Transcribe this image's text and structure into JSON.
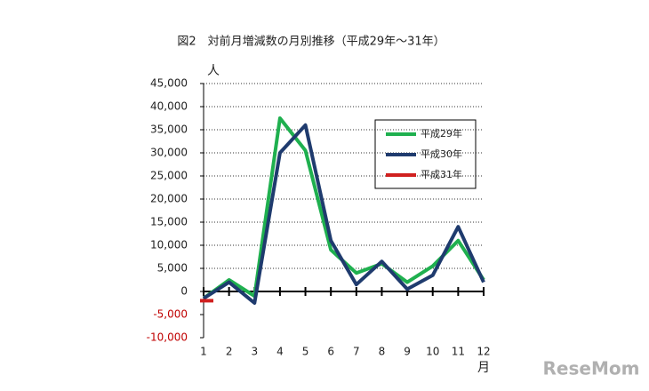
{
  "chart_data": {
    "type": "line",
    "title": "図2　対前月増減数の月別推移（平成29年～31年）",
    "y_unit": "人",
    "x_unit": "月",
    "categories": [
      "1",
      "2",
      "3",
      "4",
      "5",
      "6",
      "7",
      "8",
      "9",
      "10",
      "11",
      "12"
    ],
    "series": [
      {
        "name": "平成29年",
        "color": "#1fb04f",
        "values": [
          -1500,
          2500,
          -1000,
          37500,
          30500,
          9000,
          4000,
          6000,
          2000,
          5500,
          11000,
          2500
        ]
      },
      {
        "name": "平成30年",
        "color": "#1f3b6e",
        "values": [
          -1500,
          2000,
          -2500,
          30000,
          36000,
          11000,
          1500,
          6500,
          500,
          3500,
          14000,
          2000
        ]
      },
      {
        "name": "平成31年",
        "color": "#d0201f",
        "values": [
          -2000,
          null,
          null,
          null,
          null,
          null,
          null,
          null,
          null,
          null,
          null,
          null
        ]
      }
    ],
    "ylim": [
      -10000,
      45000
    ],
    "yticks": [
      {
        "value": -10000,
        "label": "-10,000"
      },
      {
        "value": -5000,
        "label": "-5,000"
      },
      0,
      {
        "value": 5000,
        "label": "5,000"
      },
      {
        "value": 10000,
        "label": "10,000"
      },
      {
        "value": 15000,
        "label": "15,000"
      },
      {
        "value": 20000,
        "label": "20,000"
      },
      {
        "value": 25000,
        "label": "25,000"
      },
      {
        "value": 30000,
        "label": "30,000"
      },
      {
        "value": 35000,
        "label": "35,000"
      },
      {
        "value": 40000,
        "label": "40,000"
      },
      {
        "value": 45000,
        "label": "45,000"
      }
    ],
    "negative_tick_color": "#c00000",
    "grid": true,
    "legend": "upper right",
    "watermark": "ReseMom"
  }
}
